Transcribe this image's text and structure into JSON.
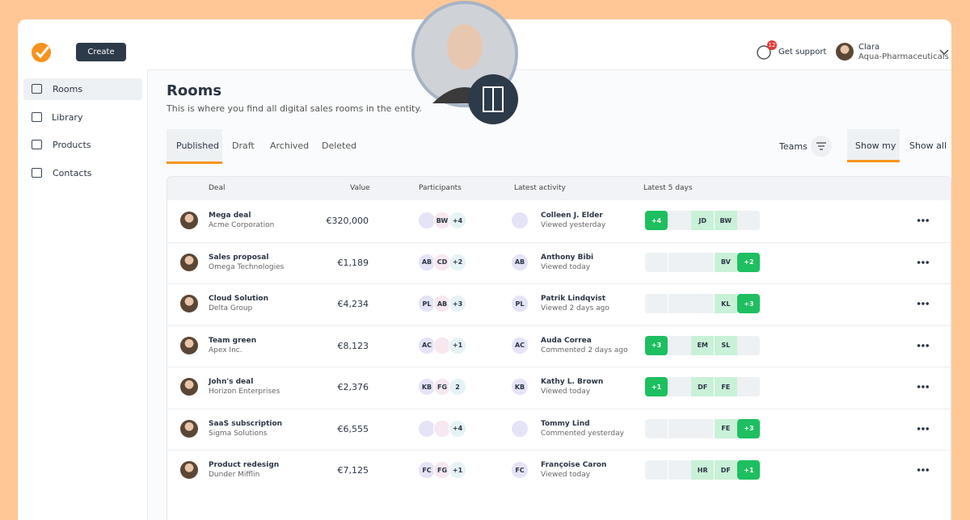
{
  "header": {
    "create": "Create",
    "notifications": "12",
    "support": "Get support",
    "user": {
      "name": "Clara",
      "company": "Aqua-Pharmaceuticals"
    }
  },
  "sidebar": [
    "Rooms",
    "Library",
    "Products",
    "Contacts"
  ],
  "page": {
    "title": "Rooms",
    "subtitle": "This is where you find all digital sales rooms in the entity."
  },
  "tabs": [
    "Published",
    "Draft",
    "Archived",
    "Deleted"
  ],
  "filters": {
    "teams": "Teams",
    "show_my": "Show my",
    "show_all": "Show all"
  },
  "table": {
    "columns": [
      "Deal",
      "Value",
      "Participants",
      "Latest activity",
      "Latest 5 days"
    ],
    "rows": [
      {
        "deal": "Mega deal",
        "company": "Acme Corporation",
        "value": "€320,000",
        "participants": [
          null,
          "BW",
          "+4"
        ],
        "activity": {
          "avatar": null,
          "name": "Colleen J. Elder",
          "status": "Viewed yesterday"
        },
        "days": [
          "+4",
          null,
          "JD",
          "BW",
          null
        ]
      },
      {
        "deal": "Sales proposal",
        "company": "Omega Technologies",
        "value": "€1,189",
        "participants": [
          "AB",
          "CD",
          "+2"
        ],
        "activity": {
          "avatar": "AB",
          "name": "Anthony Bibi",
          "status": "Viewed today"
        },
        "days": [
          null,
          null,
          null,
          "BV",
          "+2"
        ]
      },
      {
        "deal": "Cloud Solution",
        "company": "Delta Group",
        "value": "€4,234",
        "participants": [
          "PL",
          "AB",
          "+3"
        ],
        "activity": {
          "avatar": "PL",
          "name": "Patrik Lindqvist",
          "status": "Viewed 2 days ago"
        },
        "days": [
          null,
          null,
          null,
          "KL",
          "+3"
        ]
      },
      {
        "deal": "Team green",
        "company": "Apex Inc.",
        "value": "€8,123",
        "participants": [
          "AC",
          null,
          "+1"
        ],
        "activity": {
          "avatar": "AC",
          "name": "Auda Correa",
          "status": "Commented 2 days ago"
        },
        "days": [
          "+3",
          null,
          "EM",
          "SL",
          null
        ]
      },
      {
        "deal": "John's deal",
        "company": "Horizon Enterprises",
        "value": "€2,376",
        "participants": [
          "KB",
          "FG",
          "2"
        ],
        "activity": {
          "avatar": "KB",
          "name": "Kathy L. Brown",
          "status": "Viewed today"
        },
        "days": [
          "+1",
          null,
          "DF",
          "FE",
          null
        ]
      },
      {
        "deal": "SaaS subscription",
        "company": "Sigma Solutions",
        "value": "€6,555",
        "participants": [
          null,
          null,
          "+4"
        ],
        "activity": {
          "avatar": null,
          "name": "Tommy Lind",
          "status": "Commented yesterday"
        },
        "days": [
          null,
          null,
          null,
          "FE",
          "+3"
        ]
      },
      {
        "deal": "Product redesign",
        "company": "Dunder Mifflin",
        "value": "€7,125",
        "participants": [
          "FC",
          "FG",
          "+1"
        ],
        "activity": {
          "avatar": "FC",
          "name": "Françoise Caron",
          "status": "Viewed today"
        },
        "days": [
          null,
          null,
          "HR",
          "DF",
          "+1"
        ]
      }
    ]
  }
}
